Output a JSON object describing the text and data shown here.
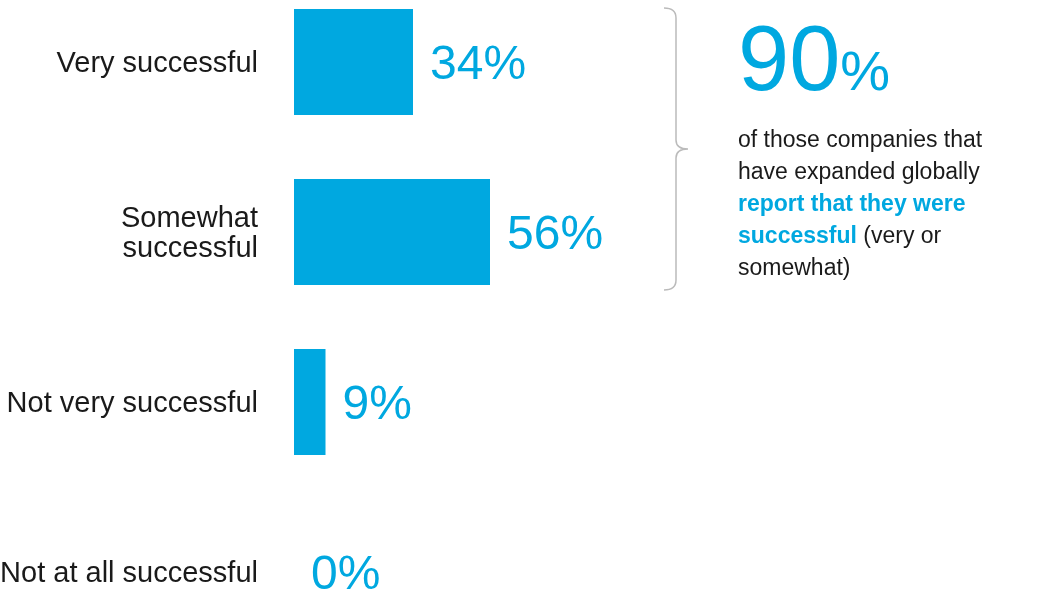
{
  "chart_data": {
    "type": "bar",
    "orientation": "horizontal",
    "categories": [
      "Very successful",
      "Somewhat successful",
      "Not very successful",
      "Not at all successful"
    ],
    "values": [
      34,
      56,
      9,
      0
    ],
    "value_labels": [
      "34%",
      "56%",
      "9%",
      "0%"
    ],
    "color": "#00a8e0",
    "annotations": [
      "90%",
      "of those companies that have expanded globally",
      "report that they were successful",
      "(very or somewhat)"
    ]
  }
}
